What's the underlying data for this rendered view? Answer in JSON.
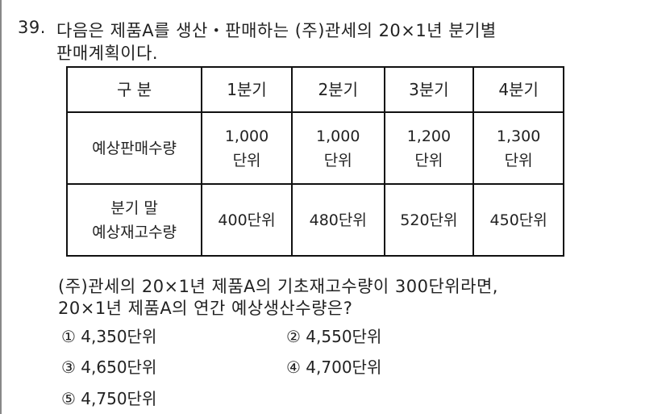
{
  "question": {
    "number": "39.",
    "line1": "다음은 제품A를 생산・판매하는 (주)관세의 20×1년 분기별",
    "line2": "판매계획이다."
  },
  "table": {
    "headers": [
      "구 분",
      "1분기",
      "2분기",
      "3분기",
      "4분기"
    ],
    "rows": [
      {
        "label": [
          "예상판매수량"
        ],
        "cells": [
          [
            "1,000",
            "단위"
          ],
          [
            "1,000",
            "단위"
          ],
          [
            "1,200",
            "단위"
          ],
          [
            "1,300",
            "단위"
          ]
        ]
      },
      {
        "label": [
          "분기 말",
          "예상재고수량"
        ],
        "cells": [
          [
            "400단위"
          ],
          [
            "480단위"
          ],
          [
            "520단위"
          ],
          [
            "450단위"
          ]
        ]
      }
    ]
  },
  "prompt": {
    "line1": "(주)관세의 20×1년 제품A의 기초재고수량이 300단위라면,",
    "line2": "20×1년 제품A의 연간 예상생산수량은?"
  },
  "options": [
    {
      "mark": "①",
      "text": "4,350단위"
    },
    {
      "mark": "②",
      "text": "4,550단위"
    },
    {
      "mark": "③",
      "text": "4,650단위"
    },
    {
      "mark": "④",
      "text": "4,700단위"
    },
    {
      "mark": "⑤",
      "text": "4,750단위"
    }
  ]
}
